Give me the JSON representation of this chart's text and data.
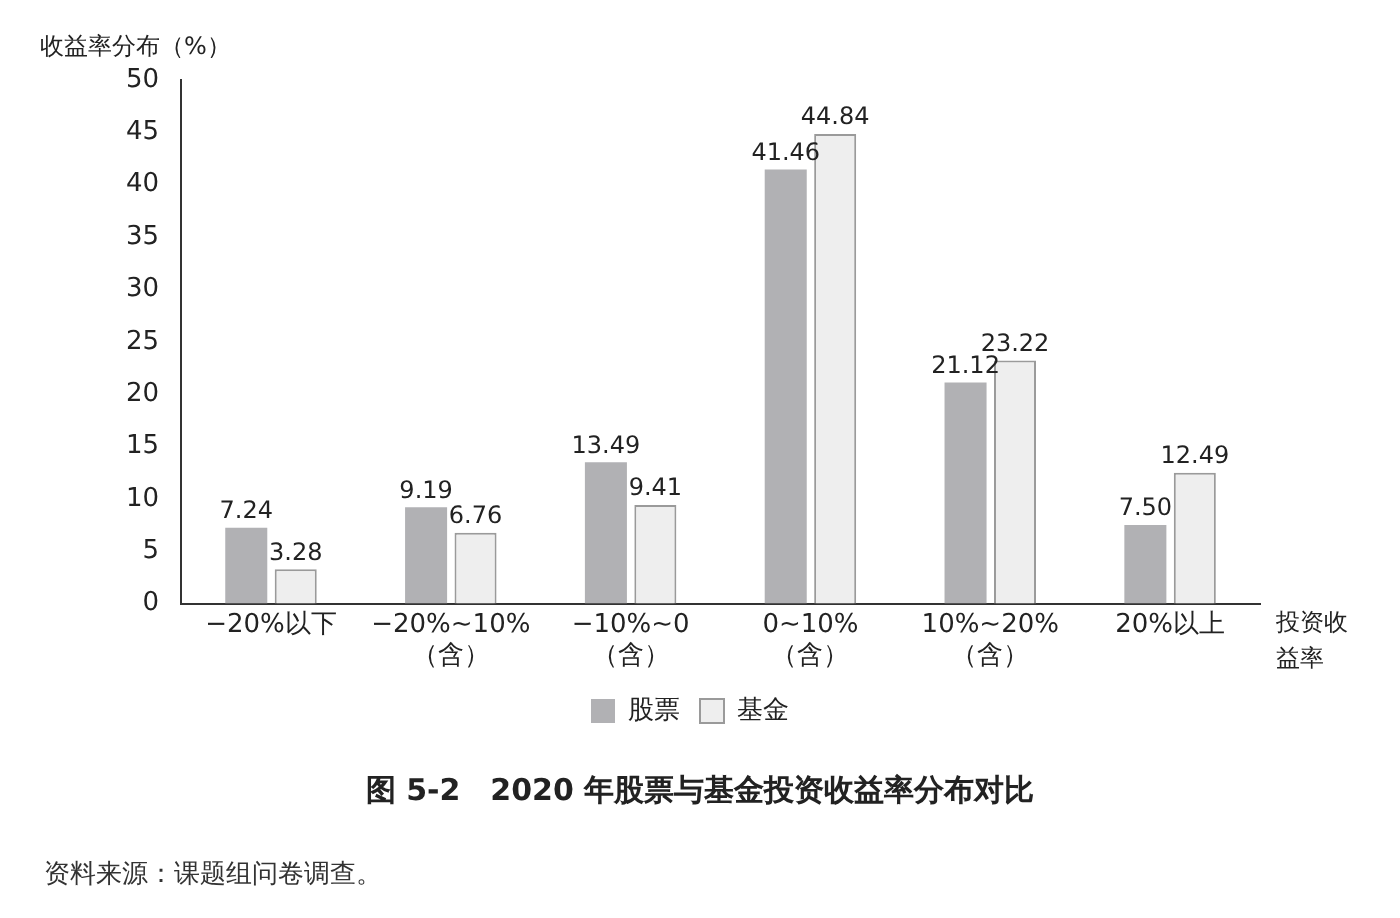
{
  "chart_data": {
    "type": "bar",
    "title": "图 5-2　2020 年股票与基金投资收益率分布对比",
    "ylabel": "收益率分布（%）",
    "xlabel": "投资收益率",
    "categories": [
      "−20%以下",
      "−20%~10%\n（含）",
      "−10%~0\n（含）",
      "0~10%\n（含）",
      "10%~20%\n（含）",
      "20%以上"
    ],
    "series": [
      {
        "name": "股票",
        "color": "#b1b1b4",
        "values": [
          7.24,
          9.19,
          13.49,
          41.46,
          21.12,
          7.5
        ],
        "value_labels": [
          "7.24",
          "9.19",
          "13.49",
          "41.46",
          "21.12",
          "7.50"
        ]
      },
      {
        "name": "基金",
        "color": "#eeeeee",
        "values": [
          3.28,
          6.76,
          9.41,
          44.84,
          23.22,
          12.49
        ],
        "value_labels": [
          "3.28",
          "6.76",
          "9.41",
          "44.84",
          "23.22",
          "12.49"
        ]
      }
    ],
    "ylim": [
      0,
      50
    ],
    "yticks": [
      0,
      5,
      10,
      15,
      20,
      25,
      30,
      35,
      40,
      45,
      50
    ],
    "grid": false,
    "legend": "bottom",
    "annotations": [
      "资料来源：课题组问卷调查。"
    ]
  }
}
